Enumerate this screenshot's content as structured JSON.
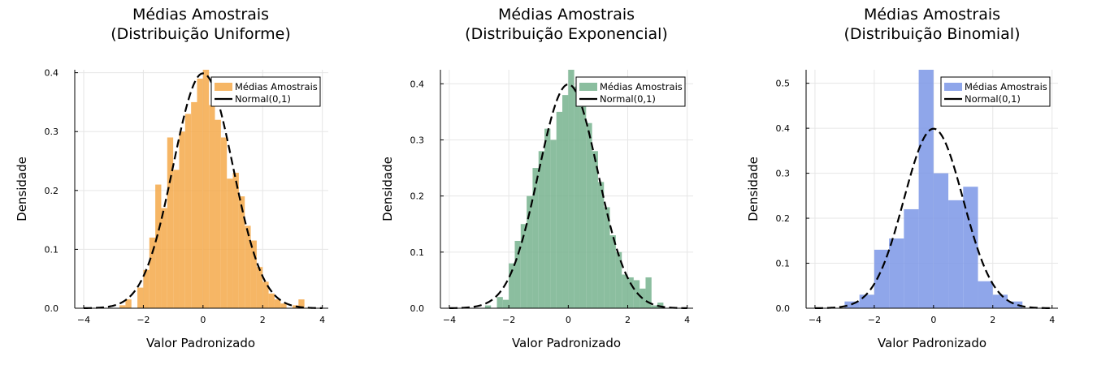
{
  "chart_data": [
    {
      "type": "bar",
      "title_line1": "Médias Amostrais",
      "title_line2": "(Distribuição Uniforme)",
      "xlabel": "Valor Padronizado",
      "ylabel": "Densidade",
      "xlim": [
        -4.3,
        4.2
      ],
      "ylim": [
        0,
        0.405
      ],
      "xticks": [
        -4,
        -2,
        0,
        2,
        4
      ],
      "yticks": [
        0.0,
        0.1,
        0.2,
        0.3,
        0.4
      ],
      "ytick_labels": [
        "0.0",
        "0.1",
        "0.2",
        "0.3",
        "0.4"
      ],
      "color": "#F5A94A",
      "legend": [
        "Médias Amostrais",
        "Normal(0,1)"
      ],
      "legend_position": "top-right",
      "grid": true,
      "bins": [
        {
          "x0": -2.8,
          "x1": -2.6,
          "y": 0.005
        },
        {
          "x0": -2.6,
          "x1": -2.4,
          "y": 0.015
        },
        {
          "x0": -2.4,
          "x1": -2.2,
          "y": 0.0
        },
        {
          "x0": -2.2,
          "x1": -2.0,
          "y": 0.035
        },
        {
          "x0": -2.0,
          "x1": -1.8,
          "y": 0.065
        },
        {
          "x0": -1.8,
          "x1": -1.6,
          "y": 0.12
        },
        {
          "x0": -1.6,
          "x1": -1.4,
          "y": 0.21
        },
        {
          "x0": -1.4,
          "x1": -1.2,
          "y": 0.17
        },
        {
          "x0": -1.2,
          "x1": -1.0,
          "y": 0.29
        },
        {
          "x0": -1.0,
          "x1": -0.8,
          "y": 0.235
        },
        {
          "x0": -0.8,
          "x1": -0.6,
          "y": 0.3
        },
        {
          "x0": -0.6,
          "x1": -0.4,
          "y": 0.33
        },
        {
          "x0": -0.4,
          "x1": -0.2,
          "y": 0.35
        },
        {
          "x0": -0.2,
          "x1": 0.0,
          "y": 0.39
        },
        {
          "x0": 0.0,
          "x1": 0.2,
          "y": 0.405
        },
        {
          "x0": 0.2,
          "x1": 0.4,
          "y": 0.345
        },
        {
          "x0": 0.4,
          "x1": 0.6,
          "y": 0.32
        },
        {
          "x0": 0.6,
          "x1": 0.8,
          "y": 0.29
        },
        {
          "x0": 0.8,
          "x1": 1.0,
          "y": 0.22
        },
        {
          "x0": 1.0,
          "x1": 1.2,
          "y": 0.23
        },
        {
          "x0": 1.2,
          "x1": 1.4,
          "y": 0.19
        },
        {
          "x0": 1.4,
          "x1": 1.6,
          "y": 0.14
        },
        {
          "x0": 1.6,
          "x1": 1.8,
          "y": 0.115
        },
        {
          "x0": 1.8,
          "x1": 2.0,
          "y": 0.07
        },
        {
          "x0": 2.0,
          "x1": 2.2,
          "y": 0.045
        },
        {
          "x0": 2.2,
          "x1": 2.4,
          "y": 0.025
        },
        {
          "x0": 2.4,
          "x1": 2.6,
          "y": 0.015
        },
        {
          "x0": 2.6,
          "x1": 2.8,
          "y": 0.008
        },
        {
          "x0": 2.8,
          "x1": 3.0,
          "y": 0.0
        },
        {
          "x0": 3.0,
          "x1": 3.2,
          "y": 0.005
        },
        {
          "x0": 3.2,
          "x1": 3.4,
          "y": 0.015
        }
      ]
    },
    {
      "type": "bar",
      "title_line1": "Médias Amostrais",
      "title_line2": "(Distribuição Exponencial)",
      "xlabel": "Valor Padronizado",
      "ylabel": "Densidade",
      "xlim": [
        -4.3,
        4.2
      ],
      "ylim": [
        0,
        0.425
      ],
      "xticks": [
        -4,
        -2,
        0,
        2,
        4
      ],
      "yticks": [
        0.0,
        0.1,
        0.2,
        0.3,
        0.4
      ],
      "ytick_labels": [
        "0.0",
        "0.1",
        "0.2",
        "0.3",
        "0.4"
      ],
      "color": "#77B38E",
      "legend": [
        "Médias Amostrais",
        "Normal(0,1)"
      ],
      "legend_position": "top-right",
      "grid": true,
      "bins": [
        {
          "x0": -2.8,
          "x1": -2.6,
          "y": 0.005
        },
        {
          "x0": -2.6,
          "x1": -2.4,
          "y": 0.0
        },
        {
          "x0": -2.4,
          "x1": -2.2,
          "y": 0.02
        },
        {
          "x0": -2.2,
          "x1": -2.0,
          "y": 0.015
        },
        {
          "x0": -2.0,
          "x1": -1.8,
          "y": 0.08
        },
        {
          "x0": -1.8,
          "x1": -1.6,
          "y": 0.12
        },
        {
          "x0": -1.6,
          "x1": -1.4,
          "y": 0.15
        },
        {
          "x0": -1.4,
          "x1": -1.2,
          "y": 0.2
        },
        {
          "x0": -1.2,
          "x1": -1.0,
          "y": 0.25
        },
        {
          "x0": -1.0,
          "x1": -0.8,
          "y": 0.28
        },
        {
          "x0": -0.8,
          "x1": -0.6,
          "y": 0.32
        },
        {
          "x0": -0.6,
          "x1": -0.4,
          "y": 0.3
        },
        {
          "x0": -0.4,
          "x1": -0.2,
          "y": 0.35
        },
        {
          "x0": -0.2,
          "x1": 0.0,
          "y": 0.38
        },
        {
          "x0": 0.0,
          "x1": 0.2,
          "y": 0.425
        },
        {
          "x0": 0.2,
          "x1": 0.4,
          "y": 0.395
        },
        {
          "x0": 0.4,
          "x1": 0.6,
          "y": 0.36
        },
        {
          "x0": 0.6,
          "x1": 0.8,
          "y": 0.33
        },
        {
          "x0": 0.8,
          "x1": 1.0,
          "y": 0.28
        },
        {
          "x0": 1.0,
          "x1": 1.2,
          "y": 0.225
        },
        {
          "x0": 1.2,
          "x1": 1.4,
          "y": 0.18
        },
        {
          "x0": 1.4,
          "x1": 1.6,
          "y": 0.13
        },
        {
          "x0": 1.6,
          "x1": 1.8,
          "y": 0.1
        },
        {
          "x0": 1.8,
          "x1": 2.0,
          "y": 0.06
        },
        {
          "x0": 2.0,
          "x1": 2.2,
          "y": 0.055
        },
        {
          "x0": 2.2,
          "x1": 2.4,
          "y": 0.05
        },
        {
          "x0": 2.4,
          "x1": 2.6,
          "y": 0.035
        },
        {
          "x0": 2.6,
          "x1": 2.8,
          "y": 0.055
        },
        {
          "x0": 2.8,
          "x1": 3.0,
          "y": 0.005
        },
        {
          "x0": 3.0,
          "x1": 3.2,
          "y": 0.01
        }
      ]
    },
    {
      "type": "bar",
      "title_line1": "Médias Amostrais",
      "title_line2": "(Distribuição Binomial)",
      "xlabel": "Valor Padronizado",
      "ylabel": "Densidade",
      "xlim": [
        -4.3,
        4.2
      ],
      "ylim": [
        0,
        0.53
      ],
      "xticks": [
        -4,
        -2,
        0,
        2,
        4
      ],
      "yticks": [
        0.0,
        0.1,
        0.2,
        0.3,
        0.4,
        0.5
      ],
      "ytick_labels": [
        "0.0",
        "0.1",
        "0.2",
        "0.3",
        "0.4",
        "0.5"
      ],
      "color": "#7B96E6",
      "legend": [
        "Médias Amostrais",
        "Normal(0,1)"
      ],
      "legend_position": "top-right",
      "grid": true,
      "bins": [
        {
          "x0": -3.0,
          "x1": -2.5,
          "y": 0.015
        },
        {
          "x0": -2.5,
          "x1": -2.0,
          "y": 0.03
        },
        {
          "x0": -2.0,
          "x1": -1.5,
          "y": 0.13
        },
        {
          "x0": -1.5,
          "x1": -1.0,
          "y": 0.155
        },
        {
          "x0": -1.0,
          "x1": -0.5,
          "y": 0.22
        },
        {
          "x0": -0.5,
          "x1": 0.0,
          "y": 0.53
        },
        {
          "x0": 0.0,
          "x1": 0.5,
          "y": 0.3
        },
        {
          "x0": 0.5,
          "x1": 1.0,
          "y": 0.24
        },
        {
          "x0": 1.0,
          "x1": 1.5,
          "y": 0.27
        },
        {
          "x0": 1.5,
          "x1": 2.0,
          "y": 0.06
        },
        {
          "x0": 2.0,
          "x1": 2.5,
          "y": 0.03
        },
        {
          "x0": 2.5,
          "x1": 3.0,
          "y": 0.015
        }
      ]
    }
  ]
}
